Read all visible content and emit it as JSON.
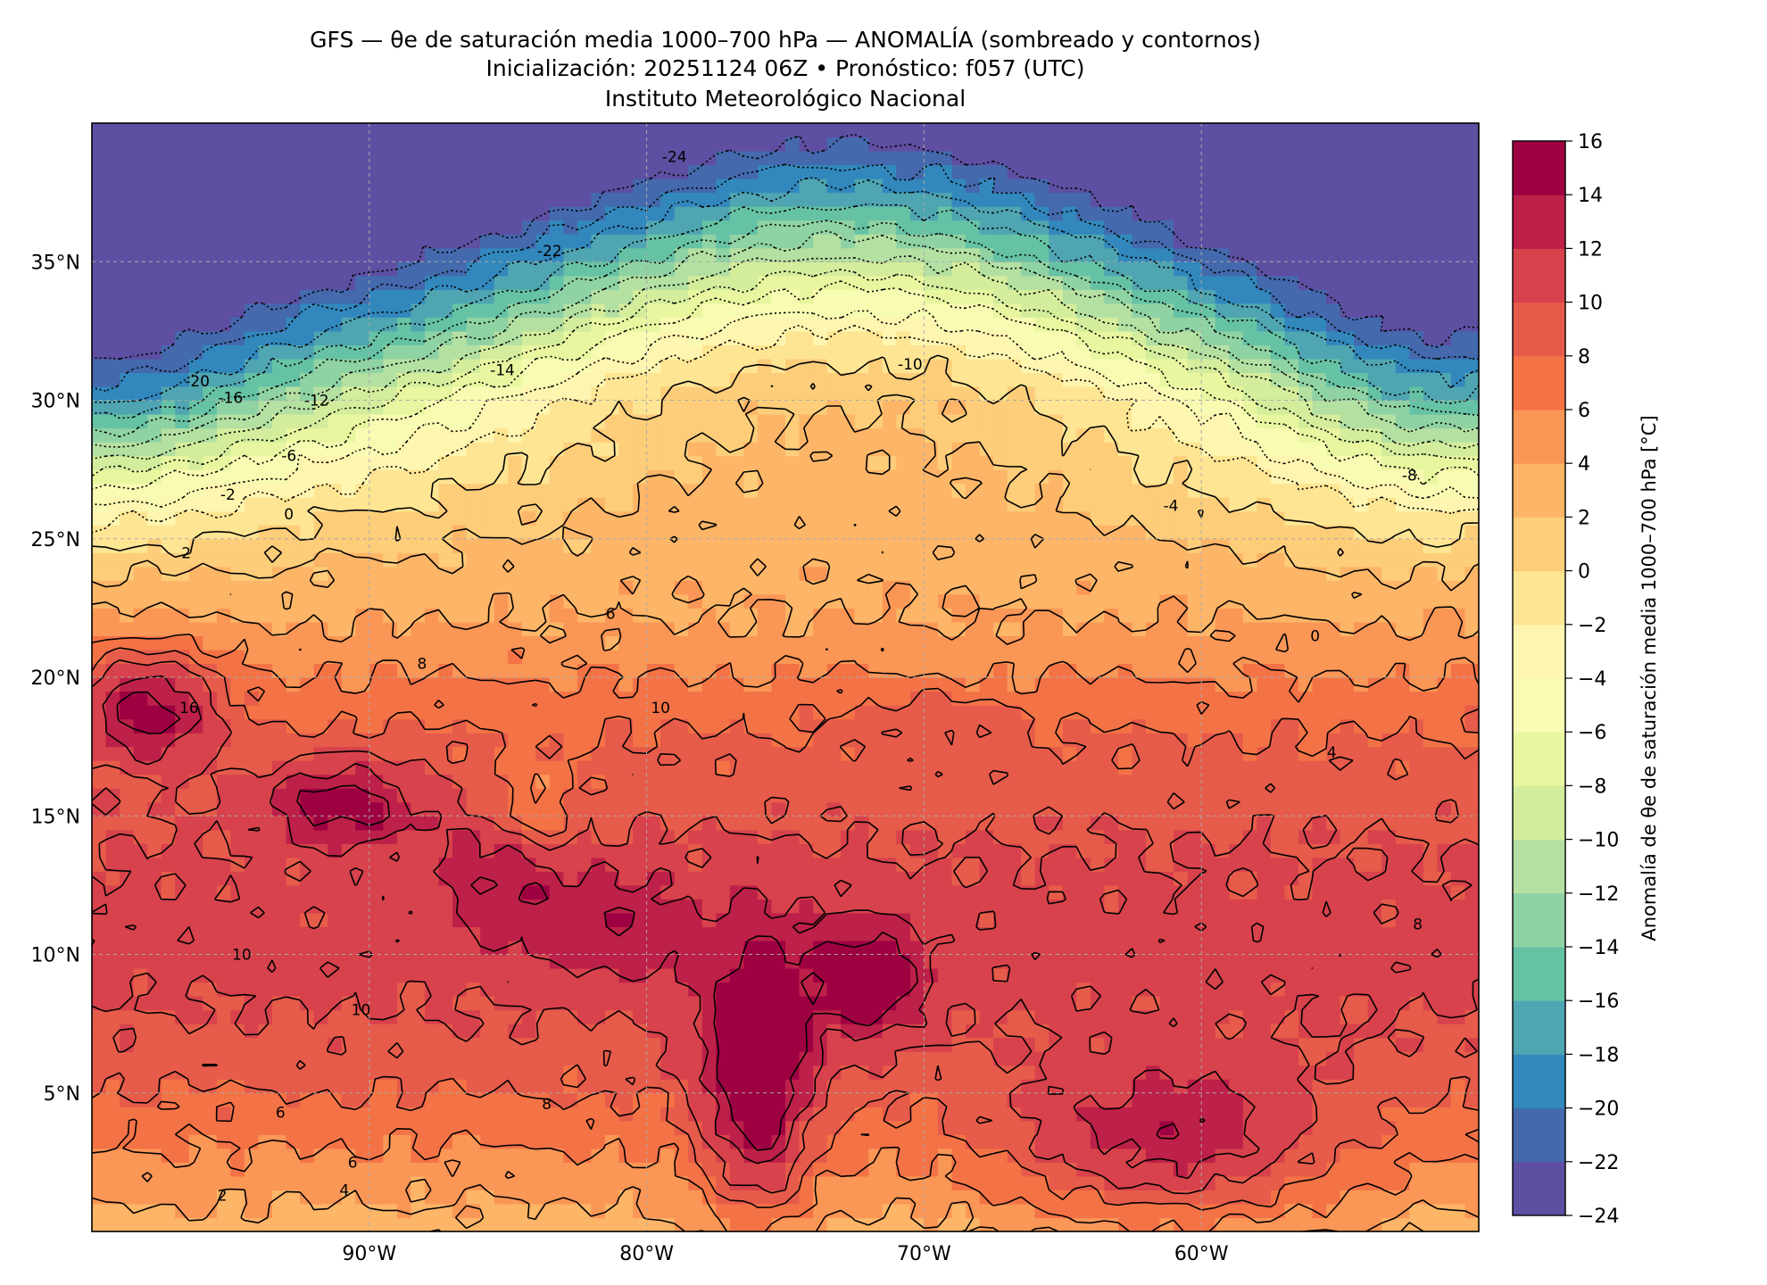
{
  "chart_data": {
    "type": "heatmap",
    "title": "GFS — θe de saturación media 1000–700 hPa — ANOMALÍA (sombreado y contornos)",
    "subtitle": "Inicialización: 20251124 06Z   •   Pronóstico: f057 (UTC)",
    "institution": "Instituto Meteorológico Nacional",
    "xlim": [
      -100,
      -50
    ],
    "ylim": [
      0,
      40
    ],
    "x_ticks": [
      -90,
      -80,
      -70,
      -60
    ],
    "x_tick_labels": [
      "90°W",
      "80°W",
      "70°W",
      "60°W"
    ],
    "y_ticks": [
      5,
      10,
      15,
      20,
      25,
      30,
      35
    ],
    "y_tick_labels": [
      "5°N",
      "10°N",
      "15°N",
      "20°N",
      "25°N",
      "30°N",
      "35°N"
    ],
    "grid": true,
    "colorbar": {
      "label": "Anomalía de θe de saturación media 1000–700 hPa [°C]",
      "levels": [
        -24,
        -22,
        -20,
        -18,
        -16,
        -14,
        -12,
        -10,
        -8,
        -6,
        -4,
        -2,
        0,
        2,
        4,
        6,
        8,
        10,
        12,
        14,
        16
      ],
      "tick_labels": [
        "−24",
        "−22",
        "−20",
        "−18",
        "−16",
        "−14",
        "−12",
        "−10",
        "−8",
        "−6",
        "−4",
        "−2",
        "0",
        "2",
        "4",
        "6",
        "8",
        "10",
        "12",
        "14",
        "16"
      ],
      "colors": [
        "#5e4fa2",
        "#4469ad",
        "#3288bd",
        "#4fa5b1",
        "#66c2a5",
        "#8fd2a4",
        "#b4e0a2",
        "#d3ed9c",
        "#e9f6a0",
        "#f8fbb2",
        "#fef6b0",
        "#fee593",
        "#fdcd7a",
        "#fdb567",
        "#fa9656",
        "#f47346",
        "#e65b4a",
        "#d7424c",
        "#bd2048",
        "#9e0142"
      ]
    },
    "contour_labels": [
      {
        "lon": -79,
        "lat": 38.8,
        "text": "-24"
      },
      {
        "lon": -83.5,
        "lat": 35.4,
        "text": "-22"
      },
      {
        "lon": -96.2,
        "lat": 30.7,
        "text": "-20"
      },
      {
        "lon": -95,
        "lat": 30.1,
        "text": "-16"
      },
      {
        "lon": -85.2,
        "lat": 31.1,
        "text": "-14"
      },
      {
        "lon": -91.9,
        "lat": 30.0,
        "text": "-12"
      },
      {
        "lon": -70.5,
        "lat": 31.3,
        "text": "-10"
      },
      {
        "lon": -52.5,
        "lat": 27.3,
        "text": "-8"
      },
      {
        "lon": -92.9,
        "lat": 28.0,
        "text": "-6"
      },
      {
        "lon": -61.1,
        "lat": 26.2,
        "text": "-4"
      },
      {
        "lon": -95.1,
        "lat": 26.6,
        "text": "-2"
      },
      {
        "lon": -92.9,
        "lat": 25.9,
        "text": "0"
      },
      {
        "lon": -55.9,
        "lat": 21.5,
        "text": "0"
      },
      {
        "lon": -96.6,
        "lat": 24.5,
        "text": "2"
      },
      {
        "lon": -55.3,
        "lat": 17.3,
        "text": "4"
      },
      {
        "lon": -93.2,
        "lat": 4.3,
        "text": "6"
      },
      {
        "lon": -81.3,
        "lat": 22.3,
        "text": "6"
      },
      {
        "lon": -88.1,
        "lat": 20.5,
        "text": "8"
      },
      {
        "lon": -52.2,
        "lat": 11.1,
        "text": "8"
      },
      {
        "lon": -79.5,
        "lat": 18.9,
        "text": "10"
      },
      {
        "lon": -94.6,
        "lat": 10.0,
        "text": "10"
      },
      {
        "lon": -90.3,
        "lat": 8.0,
        "text": "10"
      },
      {
        "lon": -96.5,
        "lat": 18.9,
        "text": "16"
      },
      {
        "lon": -90.6,
        "lat": 2.5,
        "text": "6"
      },
      {
        "lon": -83.6,
        "lat": 4.6,
        "text": "8"
      },
      {
        "lon": -90.9,
        "lat": 1.5,
        "text": "4"
      },
      {
        "lon": -95.3,
        "lat": 1.3,
        "text": "2"
      }
    ]
  }
}
